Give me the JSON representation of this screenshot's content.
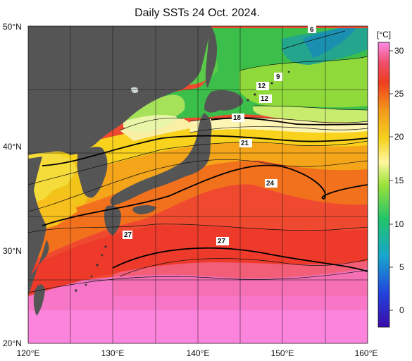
{
  "title": "Daily SSTs 24 Oct. 2024.",
  "map": {
    "x_axis": {
      "labels": [
        "120°E",
        "130°E",
        "140°E",
        "150°E",
        "160°E"
      ],
      "range": [
        120,
        160
      ]
    },
    "y_axis": {
      "labels": [
        "50°N",
        "40°N",
        "30°N",
        "20°N"
      ],
      "range": [
        20,
        50
      ]
    },
    "grid": true,
    "land_color": "#555555",
    "contour_labels": [
      "6",
      "9",
      "12",
      "12",
      "18",
      "21",
      "24",
      "27",
      "27"
    ]
  },
  "colorbar": {
    "unit": "[°C]",
    "ticks": [
      "30",
      "25",
      "20",
      "15",
      "10",
      "5",
      "0"
    ],
    "range": [
      -3,
      32
    ],
    "stops": [
      "#3a0aa8",
      "#2244dd",
      "#18a6cc",
      "#22c46a",
      "#9be23a",
      "#fff7a0",
      "#f5d21e",
      "#f39a1b",
      "#ef3d1f",
      "#ef4f6f",
      "#ff8be6"
    ]
  }
}
